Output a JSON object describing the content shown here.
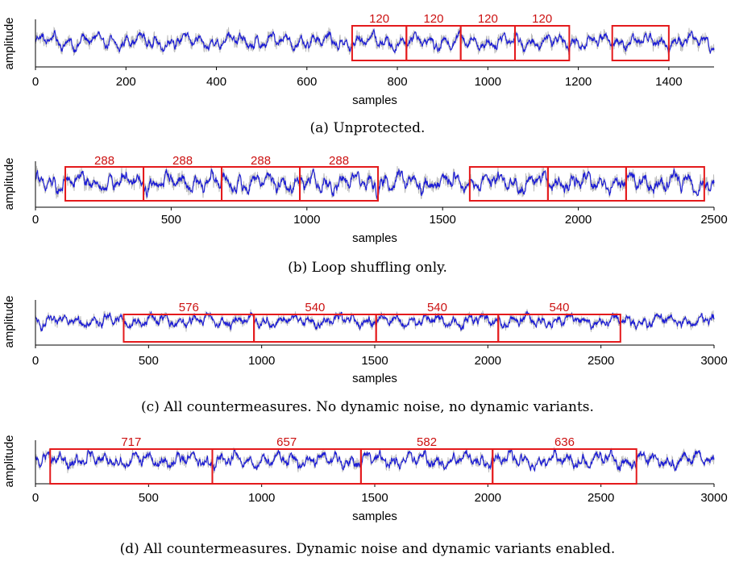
{
  "chart_data": [
    {
      "type": "line",
      "panel": "a",
      "caption": "(a) Unprotected.",
      "xlabel": "samples",
      "ylabel": "amplitude",
      "xlim": [
        0,
        1500
      ],
      "xticks": [
        0,
        200,
        400,
        600,
        800,
        1000,
        1200,
        1400
      ],
      "series": [
        {
          "color": "#bdbdbd",
          "style": "raw trace"
        },
        {
          "color": "#1a1ad6",
          "style": "smoothed trace"
        }
      ],
      "annotations": [
        {
          "start": 700,
          "end": 820,
          "label": "120"
        },
        {
          "start": 820,
          "end": 940,
          "label": "120"
        },
        {
          "start": 940,
          "end": 1060,
          "label": "120"
        },
        {
          "start": 1060,
          "end": 1180,
          "label": "120"
        },
        {
          "start": 1275,
          "end": 1400,
          "label": ""
        }
      ]
    },
    {
      "type": "line",
      "panel": "b",
      "caption": "(b) Loop shuffling only.",
      "xlabel": "samples",
      "ylabel": "amplitude",
      "xlim": [
        0,
        2500
      ],
      "xticks": [
        0,
        500,
        1000,
        1500,
        2000,
        2500
      ],
      "series": [
        {
          "color": "#bdbdbd",
          "style": "raw trace"
        },
        {
          "color": "#1a1ad6",
          "style": "smoothed trace"
        }
      ],
      "annotations": [
        {
          "start": 110,
          "end": 398,
          "label": "288"
        },
        {
          "start": 398,
          "end": 686,
          "label": "288"
        },
        {
          "start": 686,
          "end": 974,
          "label": "288"
        },
        {
          "start": 974,
          "end": 1262,
          "label": "288"
        },
        {
          "start": 1600,
          "end": 1888,
          "label": ""
        },
        {
          "start": 1888,
          "end": 2176,
          "label": ""
        },
        {
          "start": 2176,
          "end": 2464,
          "label": ""
        }
      ]
    },
    {
      "type": "line",
      "panel": "c",
      "caption": "(c) All countermeasures. No dynamic noise, no dynamic variants.",
      "xlabel": "samples",
      "ylabel": "amplitude",
      "xlim": [
        0,
        3000
      ],
      "xticks": [
        0,
        500,
        1000,
        1500,
        2000,
        2500,
        3000
      ],
      "series": [
        {
          "color": "#bdbdbd",
          "style": "raw trace"
        },
        {
          "color": "#1a1ad6",
          "style": "smoothed trace"
        }
      ],
      "annotations": [
        {
          "start": 390,
          "end": 966,
          "label": "576"
        },
        {
          "start": 966,
          "end": 1506,
          "label": "540"
        },
        {
          "start": 1506,
          "end": 2046,
          "label": "540"
        },
        {
          "start": 2046,
          "end": 2586,
          "label": "540"
        }
      ]
    },
    {
      "type": "line",
      "panel": "d",
      "caption": "(d) All countermeasures. Dynamic noise and dynamic variants enabled.",
      "xlabel": "samples",
      "ylabel": "amplitude",
      "xlim": [
        0,
        3000
      ],
      "xticks": [
        0,
        500,
        1000,
        1500,
        2000,
        2500,
        3000
      ],
      "series": [
        {
          "color": "#bdbdbd",
          "style": "raw trace"
        },
        {
          "color": "#1a1ad6",
          "style": "smoothed trace"
        }
      ],
      "annotations": [
        {
          "start": 65,
          "end": 782,
          "label": "717"
        },
        {
          "start": 782,
          "end": 1439,
          "label": "657"
        },
        {
          "start": 1439,
          "end": 2021,
          "label": "582"
        },
        {
          "start": 2021,
          "end": 2657,
          "label": "636"
        }
      ]
    }
  ],
  "colors": {
    "raw_trace": "#bdbdbd",
    "smoothed_trace": "#1a1ad6",
    "boxes": "#e41a1c",
    "box_labels": "#cc1111",
    "axes": "#000000"
  }
}
